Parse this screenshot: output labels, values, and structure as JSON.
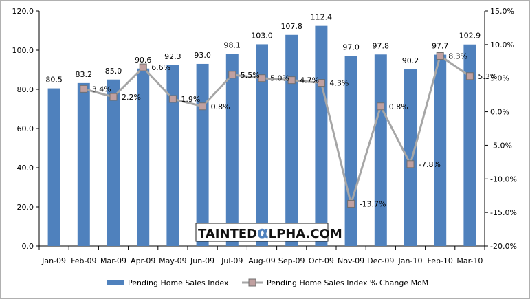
{
  "chart_data": {
    "type": "bar",
    "categories": [
      "Jan-09",
      "Feb-09",
      "Mar-09",
      "Apr-09",
      "May-09",
      "Jun-09",
      "Jul-09",
      "Aug-09",
      "Sep-09",
      "Oct-09",
      "Nov-09",
      "Dec-09",
      "Jan-10",
      "Feb-10",
      "Mar-10"
    ],
    "series": [
      {
        "name": "Pending Home Sales Index",
        "type": "bar",
        "axis": "left",
        "color": "#4f81bd",
        "values": [
          80.5,
          83.2,
          85.0,
          90.6,
          92.3,
          93.0,
          98.1,
          103.0,
          107.8,
          112.4,
          97.0,
          97.8,
          90.2,
          97.7,
          102.9
        ],
        "labels": [
          "80.5",
          "83.2",
          "85.0",
          "90.6",
          "92.3",
          "93.0",
          "98.1",
          "103.0",
          "107.8",
          "112.4",
          "97.0",
          "97.8",
          "90.2",
          "97.7",
          "102.9"
        ]
      },
      {
        "name": "Pending Home Sales Index % Change MoM",
        "type": "line",
        "axis": "right",
        "color": "#a6a6a6",
        "marker_color": "#c0a0a0",
        "values": [
          null,
          3.4,
          2.2,
          6.6,
          1.9,
          0.8,
          5.5,
          5.0,
          4.7,
          4.3,
          -13.7,
          0.8,
          -7.8,
          8.3,
          5.3
        ],
        "labels": [
          null,
          "3.4%",
          "2.2%",
          "6.6%",
          "1.9%",
          "0.8%",
          "5.5%",
          "5.0%",
          "4.7%",
          "4.3%",
          "-13.7%",
          "0.8%",
          "-7.8%",
          "8.3%",
          "5.3%"
        ]
      }
    ],
    "y_left": {
      "min": 0,
      "max": 120,
      "ticks": [
        "0.0",
        "20.0",
        "40.0",
        "60.0",
        "80.0",
        "100.0",
        "120.0"
      ]
    },
    "y_right": {
      "min": -20,
      "max": 15,
      "ticks": [
        "-20.0%",
        "-15.0%",
        "-10.0%",
        "-5.0%",
        "0.0%",
        "5.0%",
        "10.0%",
        "15.0%"
      ]
    },
    "grid": false,
    "legend_position": "bottom"
  },
  "watermark": {
    "left": "TAINTED",
    "logo": "α",
    "right": "LPHA.COM"
  }
}
